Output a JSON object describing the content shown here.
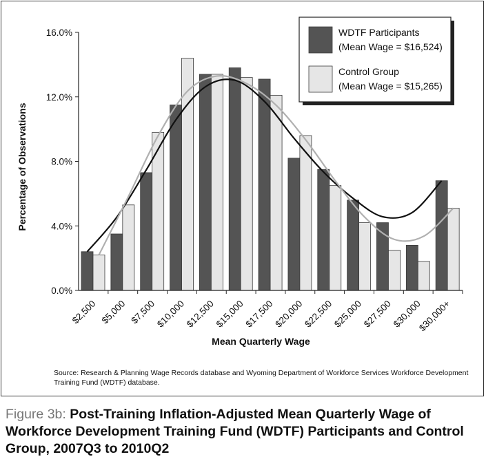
{
  "figure": {
    "label": "Figure 3b:",
    "title": "Post-Training Inflation-Adjusted Mean Quarterly Wage of Workforce Development Training Fund (WDTF) Participants and Control Group, 2007Q3 to 2010Q2",
    "source": "Source: Research & Planning Wage Records database and Wyoming Department of Workforce Services Workforce Development Training Fund (WDTF) database."
  },
  "chart_data": {
    "type": "bar",
    "xlabel": "Mean Quarterly Wage",
    "ylabel": "Percentage of Observations",
    "ylim": [
      0,
      16
    ],
    "yticks": [
      "0.0%",
      "4.0%",
      "8.0%",
      "12.0%",
      "16.0%"
    ],
    "categories": [
      "$2,500",
      "$5,000",
      "$7,500",
      "$10,000",
      "$12,500",
      "$15,000",
      "$17,500",
      "$20,000",
      "$22,500",
      "$25,000",
      "$27,500",
      "$30,000",
      "$30,000+"
    ],
    "series": [
      {
        "name": "WDTF Participants",
        "legend_sub": "(Mean Wage = $16,524)",
        "color": "#545454",
        "values": [
          2.4,
          3.5,
          7.3,
          11.5,
          13.4,
          13.8,
          13.1,
          8.2,
          7.5,
          5.6,
          4.2,
          2.8,
          6.8
        ]
      },
      {
        "name": "Control Group",
        "legend_sub": "(Mean Wage = $15,265)",
        "color": "#e6e6e6",
        "values": [
          2.2,
          5.3,
          9.8,
          14.4,
          13.4,
          13.2,
          12.1,
          9.6,
          6.5,
          4.2,
          2.5,
          1.8,
          5.1
        ]
      }
    ],
    "trendlines": [
      {
        "series": "WDTF Participants",
        "color": "#111111"
      },
      {
        "series": "Control Group",
        "color": "#b0b0b0"
      }
    ],
    "legend_position": "top-right",
    "grid": false
  }
}
